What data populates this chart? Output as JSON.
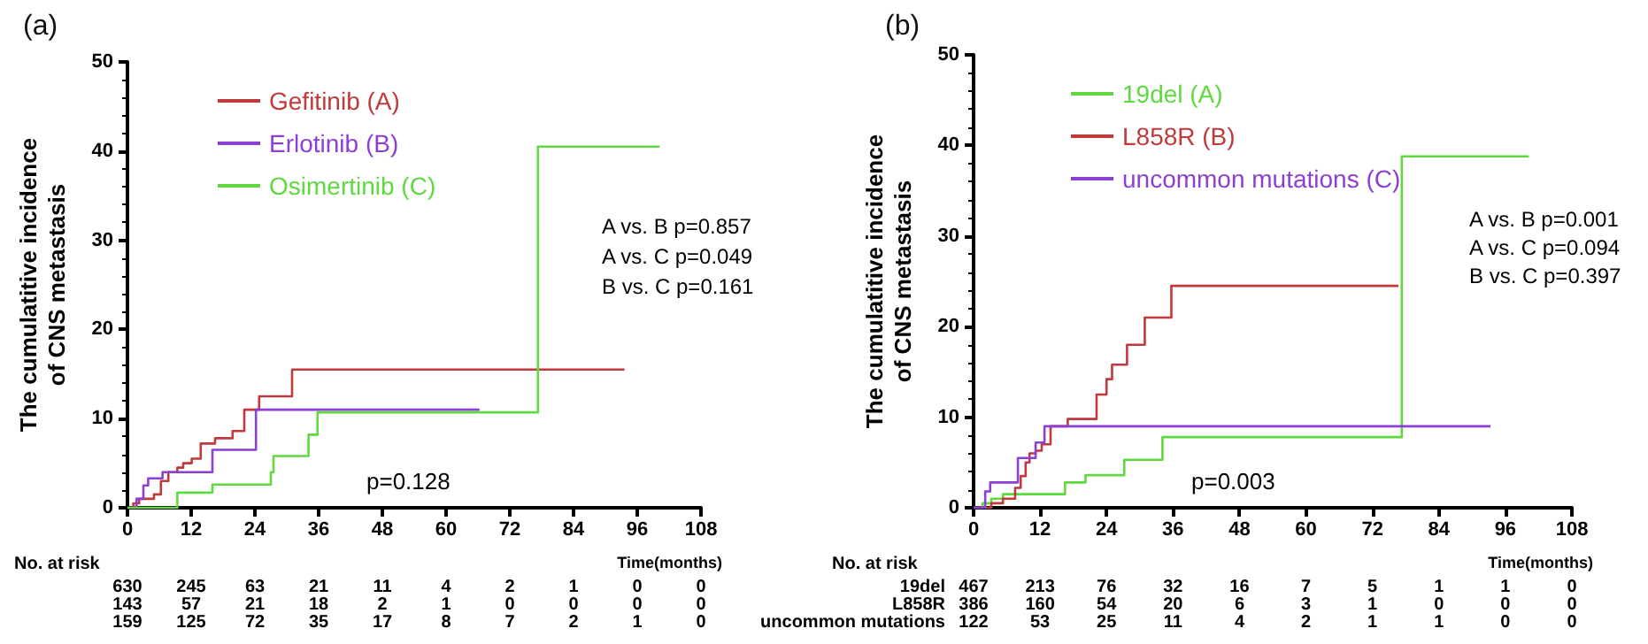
{
  "chart_data": [
    {
      "type": "step",
      "title": "(a)",
      "xlabel": "Time(months)",
      "ylabel": "The cumulatitive incidence\nof CNS metastasis",
      "xlim": [
        0,
        108
      ],
      "xticks": [
        0,
        12,
        24,
        36,
        48,
        60,
        72,
        84,
        96,
        108
      ],
      "ylim": [
        0,
        50
      ],
      "yticks": [
        0,
        10,
        20,
        30,
        40,
        50
      ],
      "grid": false,
      "legend": "top left",
      "marker": "none",
      "line_style": "solid",
      "series": [
        {
          "name": "Gefitinib (A)",
          "color": "#c0393b",
          "x": [
            0,
            1.1,
            2.2,
            5.0,
            6.3,
            7.7,
            9.4,
            10.5,
            12.1,
            13.8,
            16.5,
            19.8,
            22,
            24.8,
            31,
            93.6
          ],
          "values": [
            0,
            0.5,
            1,
            1.5,
            3,
            4,
            4.5,
            5,
            5.5,
            7.2,
            7.8,
            8.6,
            11,
            12.5,
            15.5,
            15.5
          ]
        },
        {
          "name": "Erlotinib (B)",
          "color": "#8b3fd6",
          "x": [
            0,
            1.7,
            3,
            3.9,
            6.6,
            16,
            24.2,
            66.3
          ],
          "values": [
            0,
            1,
            2.5,
            3.3,
            4,
            6.5,
            11,
            11
          ]
        },
        {
          "name": "Osimertinib (C)",
          "color": "#5fd93f",
          "x": [
            0,
            9.4,
            16,
            27,
            27.5,
            34.1,
            35.8,
            77.3,
            100.2
          ],
          "values": [
            0,
            1.7,
            2.6,
            4,
            5.8,
            8.2,
            10.7,
            40.5,
            40.5
          ]
        }
      ],
      "annotations": [
        "A vs. B p=0.857",
        "A vs. C p=0.049",
        "B vs. C p=0.161",
        "p=0.128",
        "No. at risk",
        "\t630\t245\t63\t21\t11\t4\t2\t1\t0\t0",
        "\t143\t57\t21\t18\t2\t1\t0\t0\t0\t0",
        "\t159\t125\t72\t35\t17\t8\t7\t2\t1\t0"
      ]
    },
    {
      "type": "step",
      "title": "(b)",
      "xlabel": "Time(months)",
      "ylabel": "The cumulatitive incidence\nof CNS metastasis",
      "xlim": [
        0,
        108
      ],
      "xticks": [
        0,
        12,
        24,
        36,
        48,
        60,
        72,
        84,
        96,
        108
      ],
      "ylim": [
        0,
        50
      ],
      "yticks": [
        0,
        10,
        20,
        30,
        40,
        50
      ],
      "grid": false,
      "legend": "top left",
      "marker": "none",
      "line_style": "solid",
      "series": [
        {
          "name": "19del (A)",
          "color": "#5fd93f",
          "x": [
            0,
            1.6,
            3.2,
            5.3,
            16.5,
            20.2,
            27.2,
            34.1,
            77.3,
            100.2
          ],
          "values": [
            0,
            0.5,
            1,
            1.5,
            2.8,
            3.6,
            5.3,
            7.8,
            38.8,
            38.8
          ]
        },
        {
          "name": "L858R (B)",
          "color": "#c0393b",
          "x": [
            0,
            3.2,
            5.3,
            7.5,
            8.5,
            9.4,
            10.1,
            11.2,
            12.3,
            13.9,
            17,
            22.2,
            24,
            25,
            27.7,
            30.9,
            35.7,
            76.7
          ],
          "values": [
            0,
            0.5,
            1,
            2.2,
            3.5,
            5,
            6,
            6.3,
            7,
            9,
            9.8,
            12.5,
            14.2,
            15.8,
            18,
            21,
            24.5,
            24.5
          ]
        },
        {
          "name": "uncommon mutations (C)",
          "color": "#8b3fd6",
          "x": [
            0,
            2.1,
            3,
            8,
            11.2,
            12.8,
            93.3
          ],
          "values": [
            0,
            1.8,
            2.8,
            5.5,
            7.2,
            9,
            9
          ]
        }
      ],
      "annotations": [
        "A vs. B p=0.001",
        "A vs. C p=0.094",
        "B vs. C p=0.397",
        "p=0.003",
        "No. at risk",
        "19del\t467\t213\t76\t32\t16\t7\t5\t1\t1\t0",
        "L858R\t386\t160\t54\t20\t6\t3\t1\t0\t0\t0",
        "uncommon mutations\t122\t53\t25\t11\t4\t2\t1\t1\t0\t0"
      ]
    }
  ]
}
